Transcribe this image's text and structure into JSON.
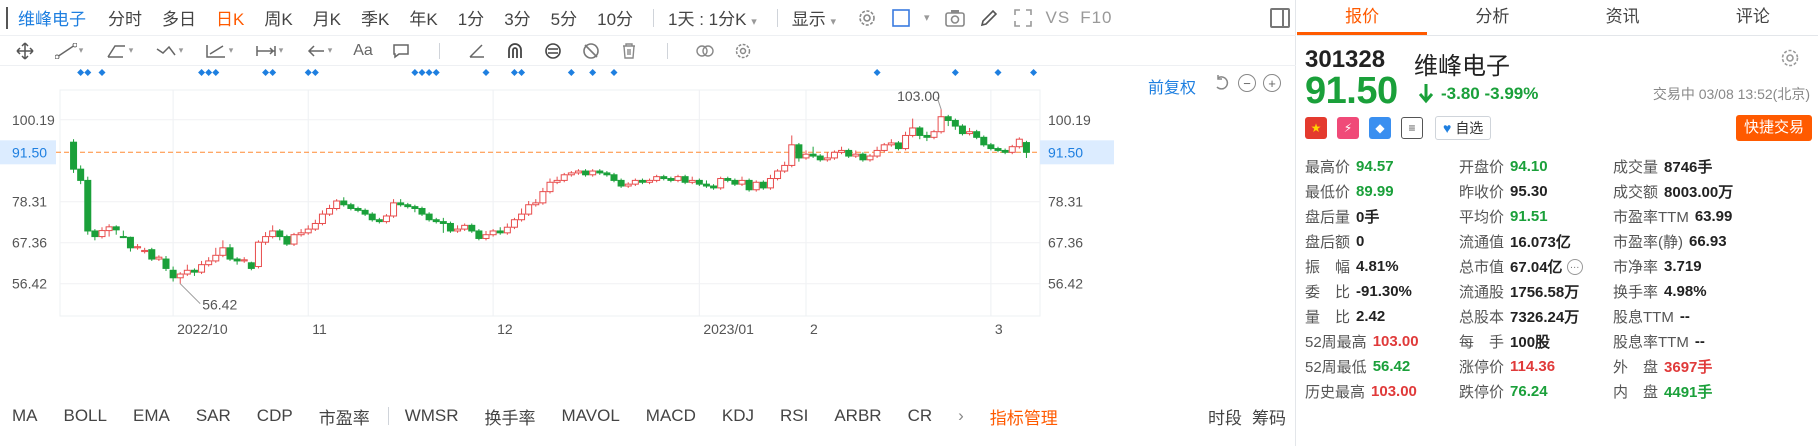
{
  "topbar": {
    "stock_name": "维峰电子",
    "periods": [
      "分时",
      "多日",
      "日K",
      "周K",
      "月K",
      "季K",
      "年K",
      "1分",
      "3分",
      "5分",
      "10分"
    ],
    "active_period": "日K",
    "interval_select": "1天 : 1分K",
    "display_label": "显示",
    "vs_label": "VS",
    "f10_label": "F10"
  },
  "chart": {
    "fq_label": "前复权",
    "y_ticks": [
      "100.19",
      "91.50",
      "78.31",
      "67.36",
      "56.42"
    ],
    "last_price_tag": "91.50",
    "x_labels": [
      "2022/10",
      "11",
      "12",
      "2023/01",
      "2",
      "3"
    ],
    "high_annotation": "103.00",
    "low_annotation": "56.42",
    "colors": {
      "up": "#e84c4c",
      "down": "#1aa03a",
      "price_line": "#ff8a33",
      "tag_bg": "#dcecff",
      "marker": "#1e7fe0"
    }
  },
  "chart_data": {
    "type": "candlestick",
    "title": "",
    "ylim": [
      51,
      106
    ],
    "x_labels": [
      "2022/10",
      "11",
      "12",
      "2023/01",
      "2",
      "3"
    ],
    "candles": [
      [
        94.2,
        87.0,
        95.0,
        86.0
      ],
      [
        87.0,
        84.0,
        88.0,
        83.0
      ],
      [
        84.0,
        70.5,
        85.0,
        69.5
      ],
      [
        70.5,
        69.0,
        71.0,
        68.0
      ],
      [
        69.0,
        70.6,
        71.5,
        68.5
      ],
      [
        70.6,
        71.6,
        72.3,
        69.0
      ],
      [
        71.6,
        70.8,
        72.0,
        69.5
      ],
      [
        69.0,
        68.8,
        70.6,
        68.6
      ],
      [
        68.8,
        66.0,
        69.0,
        65.0
      ],
      [
        66.0,
        66.3,
        67.0,
        65.5
      ],
      [
        65.0,
        65.3,
        66.0,
        64.5
      ],
      [
        65.5,
        63.0,
        66.0,
        62.5
      ],
      [
        63.0,
        63.5,
        64.0,
        62.5
      ],
      [
        63.0,
        60.5,
        63.8,
        59.8
      ],
      [
        60.0,
        58.0,
        61.0,
        57.0
      ],
      [
        58.0,
        59.0,
        59.5,
        56.42
      ],
      [
        59.0,
        60.0,
        61.5,
        58.5
      ],
      [
        60.0,
        59.5,
        60.5,
        58.5
      ],
      [
        59.5,
        61.5,
        62.5,
        59.0
      ],
      [
        61.5,
        62.5,
        63.5,
        61.0
      ],
      [
        62.5,
        64.0,
        66.0,
        62.0
      ],
      [
        64.0,
        66.0,
        68.0,
        63.5
      ],
      [
        66.0,
        63.0,
        67.0,
        62.5
      ],
      [
        63.0,
        62.5,
        63.5,
        61.5
      ],
      [
        62.5,
        62.8,
        63.5,
        62.0
      ],
      [
        62.0,
        60.5,
        62.3,
        60.0
      ],
      [
        61.0,
        67.5,
        68.0,
        60.5
      ],
      [
        67.5,
        69.0,
        70.2,
        66.8
      ],
      [
        69.0,
        70.5,
        72.0,
        68.5
      ],
      [
        70.5,
        69.0,
        71.0,
        68.0
      ],
      [
        69.0,
        67.0,
        69.5,
        66.5
      ],
      [
        67.0,
        69.5,
        70.0,
        66.5
      ],
      [
        69.5,
        70.0,
        71.0,
        69.0
      ],
      [
        70.0,
        71.0,
        72.0,
        69.5
      ],
      [
        71.0,
        72.5,
        73.5,
        70.5
      ],
      [
        72.5,
        75.0,
        76.0,
        72.0
      ],
      [
        75.0,
        76.5,
        77.5,
        74.5
      ],
      [
        76.5,
        78.5,
        79.0,
        76.0
      ],
      [
        78.5,
        77.5,
        79.5,
        77.0
      ],
      [
        77.5,
        76.5,
        78.0,
        76.0
      ],
      [
        76.5,
        76.0,
        77.0,
        75.5
      ],
      [
        76.0,
        75.0,
        76.5,
        74.5
      ],
      [
        75.0,
        73.5,
        75.5,
        73.0
      ],
      [
        73.5,
        73.0,
        74.0,
        72.5
      ],
      [
        73.0,
        74.5,
        75.0,
        72.5
      ],
      [
        74.5,
        78.0,
        79.0,
        74.0
      ],
      [
        78.0,
        77.5,
        79.0,
        77.0
      ],
      [
        77.5,
        77.0,
        78.0,
        76.5
      ],
      [
        77.0,
        76.5,
        77.5,
        75.5
      ],
      [
        76.5,
        75.0,
        77.0,
        74.5
      ],
      [
        75.0,
        73.5,
        75.5,
        73.0
      ],
      [
        73.5,
        73.0,
        74.0,
        72.5
      ],
      [
        73.0,
        72.5,
        74.0,
        70.0
      ],
      [
        72.5,
        70.5,
        73.0,
        70.0
      ],
      [
        70.5,
        71.0,
        72.0,
        70.0
      ],
      [
        71.0,
        72.0,
        72.5,
        70.5
      ],
      [
        72.0,
        70.5,
        72.5,
        70.0
      ],
      [
        70.5,
        68.5,
        71.0,
        68.0
      ],
      [
        68.5,
        69.5,
        70.5,
        68.0
      ],
      [
        69.5,
        70.5,
        71.0,
        69.0
      ],
      [
        70.5,
        70.0,
        71.5,
        69.5
      ],
      [
        70.0,
        71.5,
        72.5,
        69.5
      ],
      [
        71.5,
        73.5,
        74.0,
        71.0
      ],
      [
        73.5,
        75.0,
        76.5,
        73.0
      ],
      [
        75.0,
        77.5,
        78.5,
        74.5
      ],
      [
        77.5,
        78.0,
        79.0,
        77.0
      ],
      [
        78.0,
        81.0,
        82.0,
        77.5
      ],
      [
        81.0,
        83.5,
        84.5,
        80.5
      ],
      [
        83.5,
        84.0,
        85.0,
        83.0
      ],
      [
        84.0,
        85.5,
        86.0,
        83.5
      ],
      [
        85.5,
        86.0,
        86.5,
        85.0
      ],
      [
        86.0,
        86.5,
        87.0,
        85.5
      ],
      [
        86.5,
        85.5,
        87.0,
        85.0
      ],
      [
        85.5,
        86.5,
        87.0,
        85.0
      ],
      [
        86.5,
        86.0,
        87.0,
        85.5
      ],
      [
        86.0,
        85.5,
        86.5,
        85.0
      ],
      [
        85.5,
        84.0,
        86.0,
        83.5
      ],
      [
        84.0,
        82.5,
        84.5,
        82.0
      ],
      [
        82.5,
        83.0,
        83.5,
        82.0
      ],
      [
        83.0,
        84.0,
        84.5,
        82.5
      ],
      [
        84.0,
        83.5,
        84.5,
        83.0
      ],
      [
        83.5,
        84.0,
        84.5,
        83.0
      ],
      [
        84.0,
        85.0,
        85.5,
        83.5
      ],
      [
        85.0,
        84.5,
        85.5,
        84.0
      ],
      [
        84.5,
        84.0,
        85.0,
        83.5
      ],
      [
        84.0,
        85.0,
        85.5,
        83.5
      ],
      [
        85.0,
        83.5,
        85.5,
        83.0
      ],
      [
        83.5,
        84.0,
        85.0,
        83.0
      ],
      [
        84.0,
        83.0,
        84.5,
        82.5
      ],
      [
        83.0,
        82.5,
        84.0,
        82.0
      ],
      [
        82.5,
        82.0,
        83.0,
        81.5
      ],
      [
        82.0,
        84.5,
        85.0,
        81.5
      ],
      [
        84.5,
        84.0,
        85.0,
        83.5
      ],
      [
        84.0,
        83.0,
        84.5,
        82.5
      ],
      [
        83.0,
        84.0,
        85.0,
        82.5
      ],
      [
        84.0,
        81.5,
        84.5,
        81.0
      ],
      [
        81.5,
        83.5,
        84.0,
        81.0
      ],
      [
        83.5,
        82.0,
        84.0,
        81.5
      ],
      [
        82.0,
        84.5,
        85.5,
        81.5
      ],
      [
        84.5,
        86.5,
        87.0,
        84.0
      ],
      [
        86.5,
        88.0,
        89.0,
        86.0
      ],
      [
        88.0,
        93.5,
        96.0,
        87.5
      ],
      [
        93.5,
        90.0,
        94.0,
        89.0
      ],
      [
        90.0,
        91.0,
        92.0,
        89.5
      ],
      [
        91.0,
        90.5,
        93.0,
        90.0
      ],
      [
        90.5,
        89.5,
        91.0,
        89.0
      ],
      [
        89.5,
        90.0,
        91.5,
        89.0
      ],
      [
        90.0,
        91.5,
        92.0,
        89.5
      ],
      [
        91.5,
        92.0,
        93.0,
        91.0
      ],
      [
        92.0,
        90.5,
        92.5,
        90.0
      ],
      [
        90.5,
        91.0,
        92.0,
        90.0
      ],
      [
        91.0,
        89.5,
        91.5,
        89.0
      ],
      [
        89.5,
        90.5,
        91.0,
        89.0
      ],
      [
        90.5,
        92.0,
        93.0,
        90.0
      ],
      [
        92.0,
        93.5,
        94.0,
        91.5
      ],
      [
        93.5,
        94.0,
        95.0,
        93.0
      ],
      [
        94.0,
        92.5,
        94.5,
        92.0
      ],
      [
        92.5,
        96.0,
        97.0,
        92.0
      ],
      [
        96.0,
        98.0,
        100.5,
        95.5
      ],
      [
        98.0,
        96.0,
        98.5,
        95.0
      ],
      [
        96.0,
        95.5,
        97.0,
        94.5
      ],
      [
        95.5,
        97.0,
        97.5,
        95.0
      ],
      [
        97.0,
        101.0,
        103.0,
        96.5
      ],
      [
        101.0,
        100.0,
        101.5,
        98.5
      ],
      [
        100.0,
        98.5,
        100.5,
        97.5
      ],
      [
        98.5,
        96.5,
        99.0,
        96.0
      ],
      [
        96.5,
        97.0,
        98.0,
        96.0
      ],
      [
        97.0,
        95.5,
        97.5,
        95.0
      ],
      [
        95.5,
        93.5,
        96.0,
        93.0
      ],
      [
        93.5,
        92.5,
        94.0,
        92.0
      ],
      [
        92.5,
        92.0,
        93.0,
        91.5
      ],
      [
        92.0,
        91.5,
        92.5,
        91.0
      ],
      [
        91.5,
        93.0,
        93.5,
        91.0
      ],
      [
        93.0,
        95.0,
        95.5,
        92.5
      ],
      [
        94.1,
        91.5,
        94.57,
        89.99
      ]
    ]
  },
  "quote": {
    "tabs": [
      "报价",
      "分析",
      "资讯",
      "评论"
    ],
    "active_tab": "报价",
    "code": "301328",
    "name": "维峰电子",
    "price": "91.50",
    "change": "-3.80",
    "change_pct": "-3.99%",
    "status": "交易中 03/08 13:52(北京)",
    "fav_label": "自选",
    "quick_trade_label": "快捷交易",
    "rows": [
      [
        {
          "l": "最高价",
          "v": "94.57",
          "c": "g"
        },
        {
          "l": "开盘价",
          "v": "94.10",
          "c": "g"
        },
        {
          "l": "成交量",
          "v": "8746手",
          "c": ""
        }
      ],
      [
        {
          "l": "最低价",
          "v": "89.99",
          "c": "g"
        },
        {
          "l": "昨收价",
          "v": "95.30",
          "c": ""
        },
        {
          "l": "成交额",
          "v": "8003.00万",
          "c": ""
        }
      ],
      [
        {
          "l": "盘后量",
          "v": "0手",
          "c": ""
        },
        {
          "l": "平均价",
          "v": "91.51",
          "c": "g"
        },
        {
          "l": "市盈率TTM",
          "v": "63.99",
          "c": ""
        }
      ],
      [
        {
          "l": "盘后额",
          "v": "0",
          "c": ""
        },
        {
          "l": "流通值",
          "v": "16.073亿",
          "c": ""
        },
        {
          "l": "市盈率(静)",
          "v": "66.93",
          "c": ""
        }
      ],
      [
        {
          "l": "振　幅",
          "v": "4.81%",
          "c": ""
        },
        {
          "l": "总市值",
          "v": "67.04亿",
          "c": ""
        },
        {
          "l": "市净率",
          "v": "3.719",
          "c": ""
        }
      ],
      [
        {
          "l": "委　比",
          "v": "-91.30%",
          "c": ""
        },
        {
          "l": "流通股",
          "v": "1756.58万",
          "c": ""
        },
        {
          "l": "换手率",
          "v": "4.98%",
          "c": ""
        }
      ],
      [
        {
          "l": "量　比",
          "v": "2.42",
          "c": ""
        },
        {
          "l": "总股本",
          "v": "7326.24万",
          "c": ""
        },
        {
          "l": "股息TTM",
          "v": "--",
          "c": ""
        }
      ],
      [
        {
          "l": "52周最高",
          "v": "103.00",
          "c": "r"
        },
        {
          "l": "每　手",
          "v": "100股",
          "c": ""
        },
        {
          "l": "股息率TTM",
          "v": "--",
          "c": ""
        }
      ],
      [
        {
          "l": "52周最低",
          "v": "56.42",
          "c": "g"
        },
        {
          "l": "涨停价",
          "v": "114.36",
          "c": "r"
        },
        {
          "l": "外　盘",
          "v": "3697手",
          "c": "r"
        }
      ],
      [
        {
          "l": "历史最高",
          "v": "103.00",
          "c": "r"
        },
        {
          "l": "跌停价",
          "v": "76.24",
          "c": "g"
        },
        {
          "l": "内　盘",
          "v": "4491手",
          "c": "g"
        }
      ]
    ]
  },
  "indicators": {
    "items": [
      "MA",
      "BOLL",
      "EMA",
      "SAR",
      "CDP",
      "市盈率",
      "WMSR",
      "换手率",
      "MAVOL",
      "MACD",
      "KDJ",
      "RSI",
      "ARBR",
      "CR"
    ],
    "manage_label": "指标管理",
    "right": [
      "时段",
      "筹码"
    ]
  }
}
